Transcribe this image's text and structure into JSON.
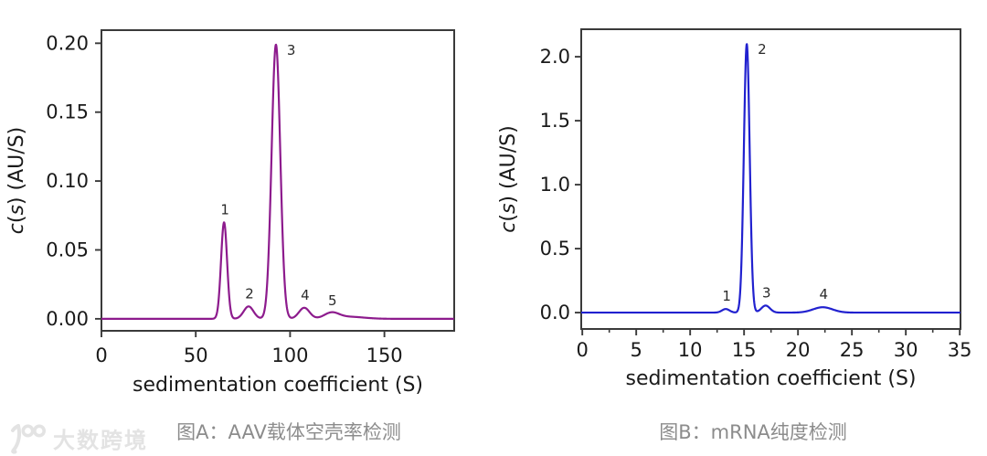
{
  "figure": {
    "background": "#ffffff",
    "frame_color": "#3a3a3a",
    "tick_text_color": "#1a1a1a",
    "caption_color": "#8c8c8c",
    "watermark_color": "#e3e3e3"
  },
  "watermark": {
    "logo": "100-logo",
    "text": "大数跨境"
  },
  "chart_data": [
    {
      "id": "A",
      "type": "line",
      "caption": "图A：AAV载体空壳率检测",
      "xlabel": "sedimentation coefficient (S)",
      "ylabel": "c(s) (AU/S)",
      "line_color": "#8d1b8d",
      "grid": false,
      "legend": "none",
      "xlim": [
        0,
        187
      ],
      "ylim": [
        -0.0087,
        0.2095
      ],
      "xticks": [
        0,
        50,
        100,
        150
      ],
      "yticks": [
        "0.00",
        "0.05",
        "0.10",
        "0.15",
        "0.20"
      ],
      "peaks": [
        {
          "label": "1",
          "s": 65,
          "c": 0.07,
          "sigma": 1.6
        },
        {
          "label": "2",
          "s": 78,
          "c": 0.009,
          "sigma": 2.6
        },
        {
          "label": "3",
          "s": 92.5,
          "c": 0.199,
          "sigma": 2.3
        },
        {
          "label": "4",
          "s": 107.5,
          "c": 0.008,
          "sigma": 2.8
        },
        {
          "label": "5",
          "s": 122,
          "c": 0.004,
          "sigma": 3.8
        },
        {
          "label": "",
          "s": 131,
          "c": 0.0015,
          "sigma": 8
        }
      ]
    },
    {
      "id": "B",
      "type": "line",
      "caption": "图B：mRNA纯度检测",
      "xlabel": "sedimentation coefficient (S)",
      "ylabel": "c(s) (AU/S)",
      "line_color": "#2121cf",
      "grid": false,
      "legend": "none",
      "xlim": [
        -0.1,
        35.07
      ],
      "ylim": [
        -0.128,
        2.215
      ],
      "xticks": [
        0,
        5,
        10,
        15,
        20,
        25,
        30,
        35
      ],
      "x_minor_step": 2.5,
      "yticks": [
        "0.0",
        "0.5",
        "1.0",
        "1.5",
        "2.0"
      ],
      "peaks": [
        {
          "label": "1",
          "s": 13.3,
          "c": 0.028,
          "sigma": 0.35
        },
        {
          "label": "2",
          "s": 15.25,
          "c": 2.1,
          "sigma": 0.27
        },
        {
          "label": "3",
          "s": 17.0,
          "c": 0.055,
          "sigma": 0.4
        },
        {
          "label": "4",
          "s": 22.3,
          "c": 0.042,
          "sigma": 0.9
        }
      ]
    }
  ]
}
